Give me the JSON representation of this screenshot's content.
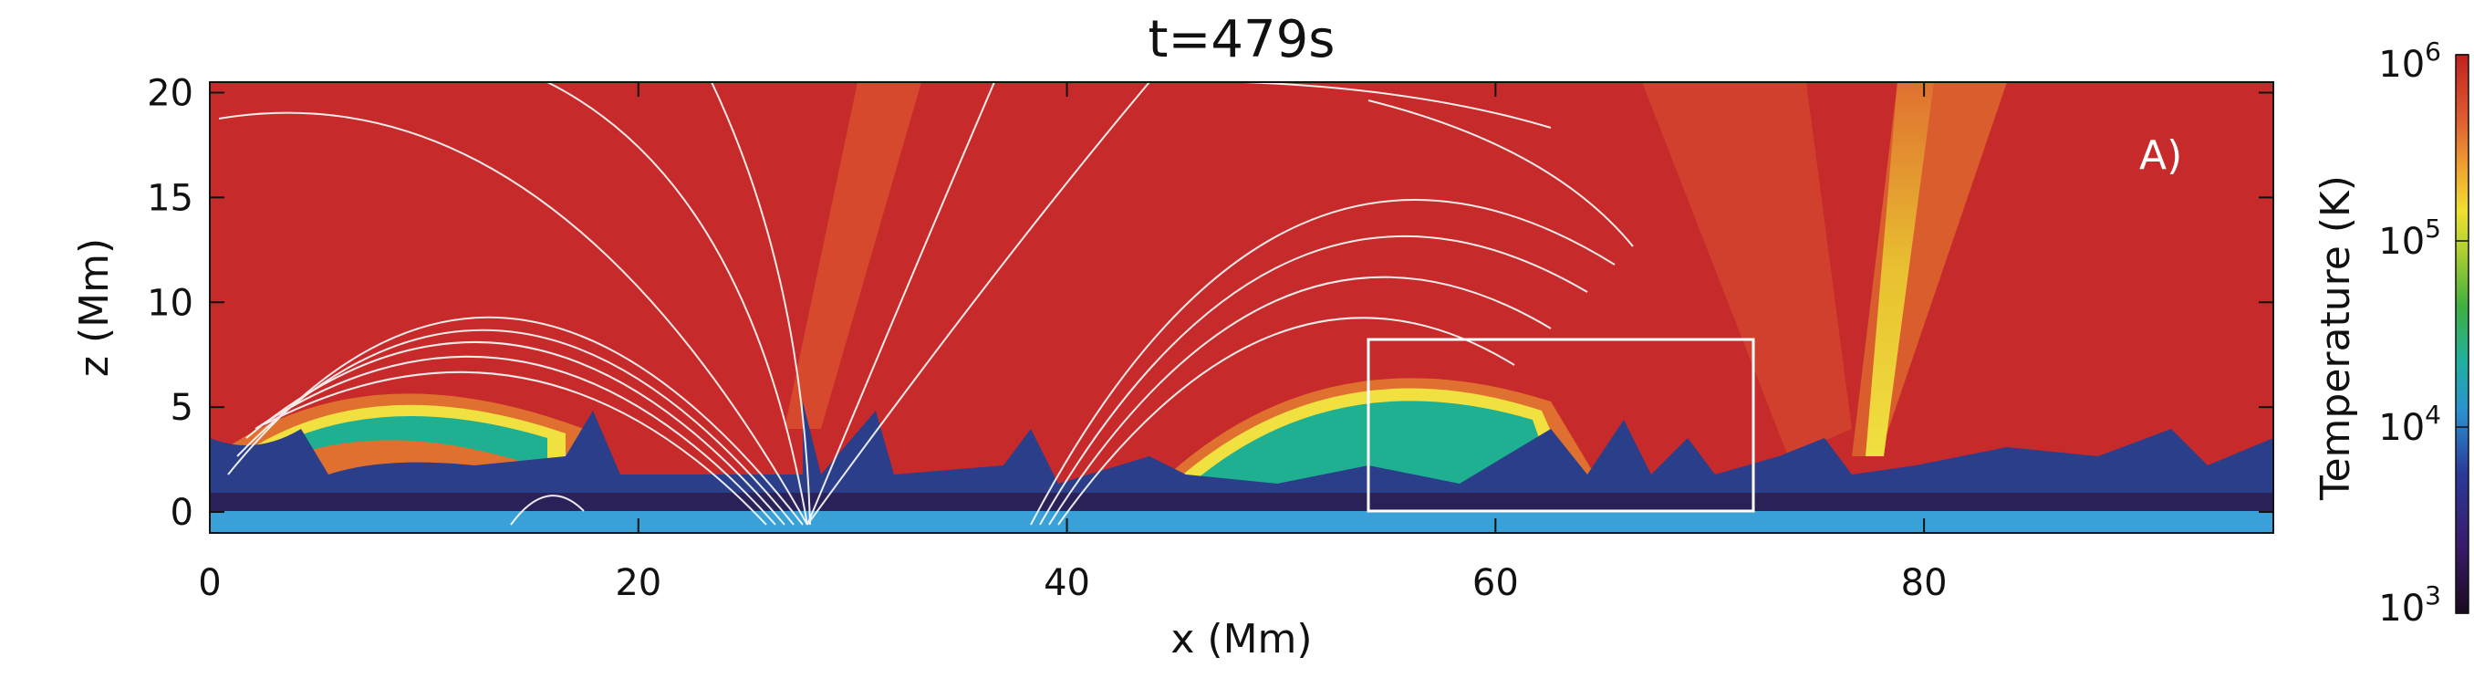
{
  "chart_data": {
    "type": "heatmap",
    "title": "t=479s",
    "xlabel": "x (Mm)",
    "ylabel": "z (Mm)",
    "xlim": [
      0,
      96.3
    ],
    "ylim": [
      -1,
      20.5
    ],
    "x_ticks": [
      0,
      20,
      40,
      60,
      80
    ],
    "y_ticks": [
      0,
      5,
      10,
      15,
      20
    ],
    "panel_label": "A)",
    "grid": false,
    "colorbar": {
      "label": "Temperature (K)",
      "scale": "log",
      "range": [
        1000,
        1000000
      ],
      "ticks": [
        {
          "base": "10",
          "exp": "3",
          "value": 1000
        },
        {
          "base": "10",
          "exp": "4",
          "value": 10000
        },
        {
          "base": "10",
          "exp": "5",
          "value": 100000
        },
        {
          "base": "10",
          "exp": "6",
          "value": 1000000
        }
      ]
    },
    "highlight_box": {
      "x": [
        54,
        72
      ],
      "z": [
        0,
        8
      ]
    },
    "colors": {
      "corona": "#c62a2a",
      "warm": "#e0602e",
      "transition": "#f0e040",
      "chromosphere": "#1eb090",
      "cool": "#2a3e8a",
      "photosphere": "#3aa0d8",
      "coldest": "#2a0a30"
    }
  }
}
